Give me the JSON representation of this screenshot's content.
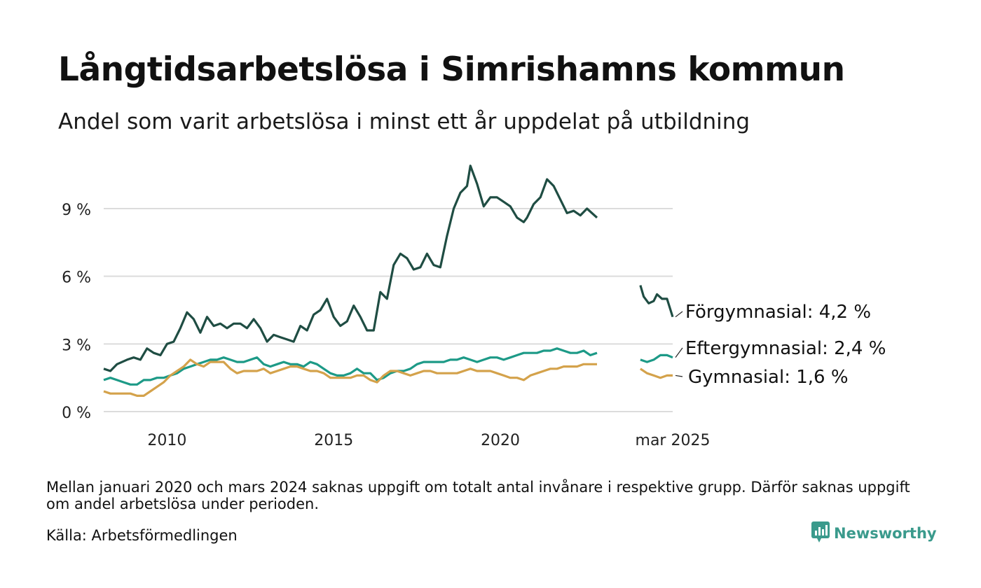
{
  "title": "Långtidsarbetslösa i Simrishamns kommun",
  "subtitle": "Andel som varit arbetslösa i minst ett år uppdelat på utbildning",
  "note": "Mellan januari 2020 och mars 2024 saknas uppgift om totalt antal invånare i respektive grupp. Därför saknas uppgift om andel arbetslösa under perioden.",
  "source": "Källa: Arbetsförmedlingen",
  "brand": {
    "name": "Newsworthy",
    "icon": "newsworthy-logo-icon",
    "color": "#3a9a8c"
  },
  "chart_data": {
    "type": "line",
    "grid": "horizontal",
    "y_range": [
      0,
      11
    ],
    "y_ticks": [
      0,
      3,
      6,
      9
    ],
    "y_tick_labels": [
      "0 %",
      "3 %",
      "6 %",
      "9 %"
    ],
    "x_range": [
      2008.1,
      2025.17
    ],
    "x_ticks": [
      2010,
      2015,
      2020,
      2025.17
    ],
    "x_tick_labels": [
      "2010",
      "2015",
      "2020",
      "mar 2025"
    ],
    "series": [
      {
        "name": "Förgymnasial",
        "label": "Förgymnasial: 4,2 %",
        "color": "#1f4d43",
        "points": [
          [
            2008.1,
            1.9
          ],
          [
            2008.3,
            1.8
          ],
          [
            2008.5,
            2.1
          ],
          [
            2008.8,
            2.3
          ],
          [
            2009.0,
            2.4
          ],
          [
            2009.2,
            2.3
          ],
          [
            2009.4,
            2.8
          ],
          [
            2009.6,
            2.6
          ],
          [
            2009.8,
            2.5
          ],
          [
            2010.0,
            3.0
          ],
          [
            2010.2,
            3.1
          ],
          [
            2010.4,
            3.7
          ],
          [
            2010.6,
            4.4
          ],
          [
            2010.8,
            4.1
          ],
          [
            2011.0,
            3.5
          ],
          [
            2011.2,
            4.2
          ],
          [
            2011.4,
            3.8
          ],
          [
            2011.6,
            3.9
          ],
          [
            2011.8,
            3.7
          ],
          [
            2012.0,
            3.9
          ],
          [
            2012.2,
            3.9
          ],
          [
            2012.4,
            3.7
          ],
          [
            2012.6,
            4.1
          ],
          [
            2012.8,
            3.7
          ],
          [
            2013.0,
            3.1
          ],
          [
            2013.2,
            3.4
          ],
          [
            2013.4,
            3.3
          ],
          [
            2013.6,
            3.2
          ],
          [
            2013.8,
            3.1
          ],
          [
            2014.0,
            3.8
          ],
          [
            2014.2,
            3.6
          ],
          [
            2014.4,
            4.3
          ],
          [
            2014.6,
            4.5
          ],
          [
            2014.8,
            5.0
          ],
          [
            2015.0,
            4.2
          ],
          [
            2015.2,
            3.8
          ],
          [
            2015.4,
            4.0
          ],
          [
            2015.6,
            4.7
          ],
          [
            2015.8,
            4.2
          ],
          [
            2016.0,
            3.6
          ],
          [
            2016.2,
            3.6
          ],
          [
            2016.4,
            5.3
          ],
          [
            2016.6,
            5.0
          ],
          [
            2016.8,
            6.5
          ],
          [
            2017.0,
            7.0
          ],
          [
            2017.2,
            6.8
          ],
          [
            2017.4,
            6.3
          ],
          [
            2017.6,
            6.4
          ],
          [
            2017.8,
            7.0
          ],
          [
            2018.0,
            6.5
          ],
          [
            2018.2,
            6.4
          ],
          [
            2018.4,
            7.8
          ],
          [
            2018.6,
            9.0
          ],
          [
            2018.8,
            9.7
          ],
          [
            2019.0,
            10.0
          ],
          [
            2019.1,
            10.9
          ],
          [
            2019.3,
            10.1
          ],
          [
            2019.5,
            9.1
          ],
          [
            2019.7,
            9.5
          ],
          [
            2019.9,
            9.5
          ],
          [
            2020.1,
            9.3
          ],
          [
            2020.3,
            9.1
          ],
          [
            2020.5,
            8.6
          ],
          [
            2020.7,
            8.4
          ],
          [
            2020.8,
            8.6
          ],
          [
            2021.0,
            9.2
          ],
          [
            2021.2,
            9.5
          ],
          [
            2021.4,
            10.3
          ],
          [
            2021.6,
            10.0
          ],
          [
            2021.8,
            9.4
          ],
          [
            2022.0,
            8.8
          ],
          [
            2022.2,
            8.9
          ],
          [
            2022.4,
            8.7
          ],
          [
            2022.6,
            9.0
          ],
          [
            2022.9,
            8.6
          ],
          [
            2024.2,
            5.6
          ],
          [
            2024.3,
            5.1
          ],
          [
            2024.45,
            4.8
          ],
          [
            2024.6,
            4.9
          ],
          [
            2024.7,
            5.2
          ],
          [
            2024.85,
            5.0
          ],
          [
            2025.0,
            5.0
          ],
          [
            2025.17,
            4.2
          ]
        ]
      },
      {
        "name": "Eftergymnasial",
        "label": "Eftergymnasial: 2,4 %",
        "color": "#1d9a87",
        "points": [
          [
            2008.1,
            1.4
          ],
          [
            2008.3,
            1.5
          ],
          [
            2008.5,
            1.4
          ],
          [
            2008.7,
            1.3
          ],
          [
            2008.9,
            1.2
          ],
          [
            2009.1,
            1.2
          ],
          [
            2009.3,
            1.4
          ],
          [
            2009.5,
            1.4
          ],
          [
            2009.7,
            1.5
          ],
          [
            2009.9,
            1.5
          ],
          [
            2010.1,
            1.6
          ],
          [
            2010.3,
            1.7
          ],
          [
            2010.5,
            1.9
          ],
          [
            2010.7,
            2.0
          ],
          [
            2010.9,
            2.1
          ],
          [
            2011.1,
            2.2
          ],
          [
            2011.3,
            2.3
          ],
          [
            2011.5,
            2.3
          ],
          [
            2011.7,
            2.4
          ],
          [
            2011.9,
            2.3
          ],
          [
            2012.1,
            2.2
          ],
          [
            2012.3,
            2.2
          ],
          [
            2012.5,
            2.3
          ],
          [
            2012.7,
            2.4
          ],
          [
            2012.9,
            2.1
          ],
          [
            2013.1,
            2.0
          ],
          [
            2013.3,
            2.1
          ],
          [
            2013.5,
            2.2
          ],
          [
            2013.7,
            2.1
          ],
          [
            2013.9,
            2.1
          ],
          [
            2014.1,
            2.0
          ],
          [
            2014.3,
            2.2
          ],
          [
            2014.5,
            2.1
          ],
          [
            2014.7,
            1.9
          ],
          [
            2014.9,
            1.7
          ],
          [
            2015.1,
            1.6
          ],
          [
            2015.3,
            1.6
          ],
          [
            2015.5,
            1.7
          ],
          [
            2015.7,
            1.9
          ],
          [
            2015.9,
            1.7
          ],
          [
            2016.1,
            1.7
          ],
          [
            2016.3,
            1.4
          ],
          [
            2016.5,
            1.5
          ],
          [
            2016.7,
            1.7
          ],
          [
            2016.9,
            1.8
          ],
          [
            2017.1,
            1.8
          ],
          [
            2017.3,
            1.9
          ],
          [
            2017.5,
            2.1
          ],
          [
            2017.7,
            2.2
          ],
          [
            2017.9,
            2.2
          ],
          [
            2018.1,
            2.2
          ],
          [
            2018.3,
            2.2
          ],
          [
            2018.5,
            2.3
          ],
          [
            2018.7,
            2.3
          ],
          [
            2018.9,
            2.4
          ],
          [
            2019.1,
            2.3
          ],
          [
            2019.3,
            2.2
          ],
          [
            2019.5,
            2.3
          ],
          [
            2019.7,
            2.4
          ],
          [
            2019.9,
            2.4
          ],
          [
            2020.1,
            2.3
          ],
          [
            2020.3,
            2.4
          ],
          [
            2020.5,
            2.5
          ],
          [
            2020.7,
            2.6
          ],
          [
            2020.9,
            2.6
          ],
          [
            2021.1,
            2.6
          ],
          [
            2021.3,
            2.7
          ],
          [
            2021.5,
            2.7
          ],
          [
            2021.7,
            2.8
          ],
          [
            2021.9,
            2.7
          ],
          [
            2022.1,
            2.6
          ],
          [
            2022.3,
            2.6
          ],
          [
            2022.5,
            2.7
          ],
          [
            2022.7,
            2.5
          ],
          [
            2022.9,
            2.6
          ],
          [
            2024.2,
            2.3
          ],
          [
            2024.4,
            2.2
          ],
          [
            2024.6,
            2.3
          ],
          [
            2024.8,
            2.5
          ],
          [
            2025.0,
            2.5
          ],
          [
            2025.17,
            2.4
          ]
        ]
      },
      {
        "name": "Gymnasial",
        "label": "Gymnasial: 1,6 %",
        "color": "#d4a24b",
        "points": [
          [
            2008.1,
            0.9
          ],
          [
            2008.3,
            0.8
          ],
          [
            2008.5,
            0.8
          ],
          [
            2008.7,
            0.8
          ],
          [
            2008.9,
            0.8
          ],
          [
            2009.1,
            0.7
          ],
          [
            2009.3,
            0.7
          ],
          [
            2009.5,
            0.9
          ],
          [
            2009.7,
            1.1
          ],
          [
            2009.9,
            1.3
          ],
          [
            2010.1,
            1.6
          ],
          [
            2010.3,
            1.8
          ],
          [
            2010.5,
            2.0
          ],
          [
            2010.7,
            2.3
          ],
          [
            2010.9,
            2.1
          ],
          [
            2011.1,
            2.0
          ],
          [
            2011.3,
            2.2
          ],
          [
            2011.5,
            2.2
          ],
          [
            2011.7,
            2.2
          ],
          [
            2011.9,
            1.9
          ],
          [
            2012.1,
            1.7
          ],
          [
            2012.3,
            1.8
          ],
          [
            2012.5,
            1.8
          ],
          [
            2012.7,
            1.8
          ],
          [
            2012.9,
            1.9
          ],
          [
            2013.1,
            1.7
          ],
          [
            2013.3,
            1.8
          ],
          [
            2013.5,
            1.9
          ],
          [
            2013.7,
            2.0
          ],
          [
            2013.9,
            2.0
          ],
          [
            2014.1,
            1.9
          ],
          [
            2014.3,
            1.8
          ],
          [
            2014.5,
            1.8
          ],
          [
            2014.7,
            1.7
          ],
          [
            2014.9,
            1.5
          ],
          [
            2015.1,
            1.5
          ],
          [
            2015.3,
            1.5
          ],
          [
            2015.5,
            1.5
          ],
          [
            2015.7,
            1.6
          ],
          [
            2015.9,
            1.6
          ],
          [
            2016.1,
            1.4
          ],
          [
            2016.3,
            1.3
          ],
          [
            2016.5,
            1.6
          ],
          [
            2016.7,
            1.8
          ],
          [
            2016.9,
            1.8
          ],
          [
            2017.1,
            1.7
          ],
          [
            2017.3,
            1.6
          ],
          [
            2017.5,
            1.7
          ],
          [
            2017.7,
            1.8
          ],
          [
            2017.9,
            1.8
          ],
          [
            2018.1,
            1.7
          ],
          [
            2018.3,
            1.7
          ],
          [
            2018.5,
            1.7
          ],
          [
            2018.7,
            1.7
          ],
          [
            2018.9,
            1.8
          ],
          [
            2019.1,
            1.9
          ],
          [
            2019.3,
            1.8
          ],
          [
            2019.5,
            1.8
          ],
          [
            2019.7,
            1.8
          ],
          [
            2019.9,
            1.7
          ],
          [
            2020.1,
            1.6
          ],
          [
            2020.3,
            1.5
          ],
          [
            2020.5,
            1.5
          ],
          [
            2020.7,
            1.4
          ],
          [
            2020.9,
            1.6
          ],
          [
            2021.1,
            1.7
          ],
          [
            2021.3,
            1.8
          ],
          [
            2021.5,
            1.9
          ],
          [
            2021.7,
            1.9
          ],
          [
            2021.9,
            2.0
          ],
          [
            2022.1,
            2.0
          ],
          [
            2022.3,
            2.0
          ],
          [
            2022.5,
            2.1
          ],
          [
            2022.7,
            2.1
          ],
          [
            2022.9,
            2.1
          ],
          [
            2024.2,
            1.9
          ],
          [
            2024.4,
            1.7
          ],
          [
            2024.6,
            1.6
          ],
          [
            2024.8,
            1.5
          ],
          [
            2025.0,
            1.6
          ],
          [
            2025.17,
            1.6
          ]
        ]
      }
    ]
  }
}
